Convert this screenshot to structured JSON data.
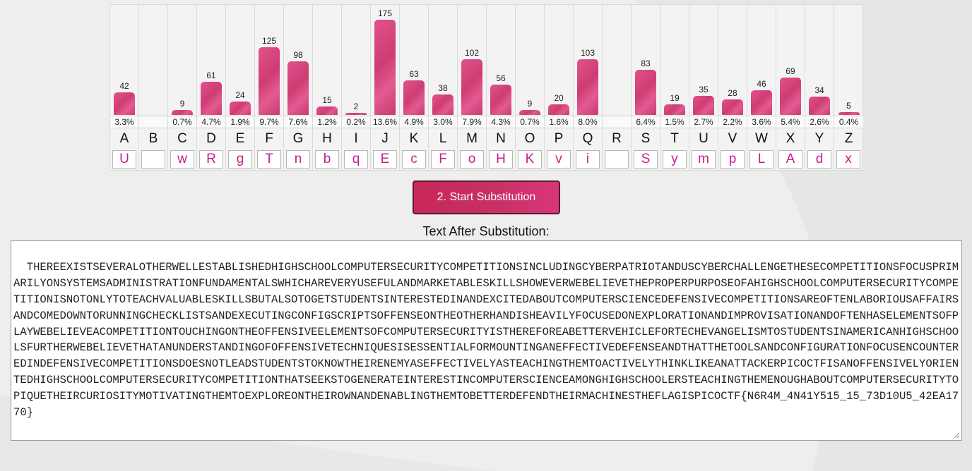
{
  "frequency": {
    "columns": [
      {
        "letter": "A",
        "count": "42",
        "count_num": 42,
        "pct": "3.3%",
        "sub": "U"
      },
      {
        "letter": "B",
        "count": "",
        "count_num": 0,
        "pct": "",
        "sub": ""
      },
      {
        "letter": "C",
        "count": "9",
        "count_num": 9,
        "pct": "0.7%",
        "sub": "w"
      },
      {
        "letter": "D",
        "count": "61",
        "count_num": 61,
        "pct": "4.7%",
        "sub": "R"
      },
      {
        "letter": "E",
        "count": "24",
        "count_num": 24,
        "pct": "1.9%",
        "sub": "g"
      },
      {
        "letter": "F",
        "count": "125",
        "count_num": 125,
        "pct": "9.7%",
        "sub": "T"
      },
      {
        "letter": "G",
        "count": "98",
        "count_num": 98,
        "pct": "7.6%",
        "sub": "n"
      },
      {
        "letter": "H",
        "count": "15",
        "count_num": 15,
        "pct": "1.2%",
        "sub": "b"
      },
      {
        "letter": "I",
        "count": "2",
        "count_num": 2,
        "pct": "0.2%",
        "sub": "q"
      },
      {
        "letter": "J",
        "count": "175",
        "count_num": 175,
        "pct": "13.6%",
        "sub": "E"
      },
      {
        "letter": "K",
        "count": "63",
        "count_num": 63,
        "pct": "4.9%",
        "sub": "c"
      },
      {
        "letter": "L",
        "count": "38",
        "count_num": 38,
        "pct": "3.0%",
        "sub": "F"
      },
      {
        "letter": "M",
        "count": "102",
        "count_num": 102,
        "pct": "7.9%",
        "sub": "o"
      },
      {
        "letter": "N",
        "count": "56",
        "count_num": 56,
        "pct": "4.3%",
        "sub": "H"
      },
      {
        "letter": "O",
        "count": "9",
        "count_num": 9,
        "pct": "0.7%",
        "sub": "K"
      },
      {
        "letter": "P",
        "count": "20",
        "count_num": 20,
        "pct": "1.6%",
        "sub": "v"
      },
      {
        "letter": "Q",
        "count": "103",
        "count_num": 103,
        "pct": "8.0%",
        "sub": "i"
      },
      {
        "letter": "R",
        "count": "",
        "count_num": 0,
        "pct": "",
        "sub": ""
      },
      {
        "letter": "S",
        "count": "83",
        "count_num": 83,
        "pct": "6.4%",
        "sub": "S"
      },
      {
        "letter": "T",
        "count": "19",
        "count_num": 19,
        "pct": "1.5%",
        "sub": "y"
      },
      {
        "letter": "U",
        "count": "35",
        "count_num": 35,
        "pct": "2.7%",
        "sub": "m"
      },
      {
        "letter": "V",
        "count": "28",
        "count_num": 28,
        "pct": "2.2%",
        "sub": "p"
      },
      {
        "letter": "W",
        "count": "46",
        "count_num": 46,
        "pct": "3.6%",
        "sub": "L"
      },
      {
        "letter": "X",
        "count": "69",
        "count_num": 69,
        "pct": "5.4%",
        "sub": "A"
      },
      {
        "letter": "Y",
        "count": "34",
        "count_num": 34,
        "pct": "2.6%",
        "sub": "d"
      },
      {
        "letter": "Z",
        "count": "5",
        "count_num": 5,
        "pct": "0.4%",
        "sub": "x"
      }
    ],
    "max_count": 175,
    "bar_color": "#d94381",
    "sub_text_color": "#c5218d"
  },
  "actions": {
    "start_label": "2. Start Substitution"
  },
  "output": {
    "label": "Text After Substitution:",
    "text": "THEREEXISTSEVERALOTHERWELLESTABLISHEDHIGHSCHOOLCOMPUTERSECURITYCOMPETITIONSINCLUDINGCYBERPATRIOTANDUSCYBERCHALLENGETHESECOMPETITIONSFOCUSPRIMARILYONSYSTEMSADMINISTRATIONFUNDAMENTALSWHICHAREVERYUSEFULANDMARKETABLESKILLSHOWEVERWEBELIEVETHEPROPERPURPOSEOFAHIGHSCHOOLCOMPUTERSECURITYCOMPETITIONISNOTONLYTOTEACHVALUABLESKILLSBUTALSOTOGETSTUDENTSINTERESTEDINANDEXCITEDABOUTCOMPUTERSCIENCEDEFENSIVECOMPETITIONSAREOFTENLABORIOUSAFFAIRSANDCOMEDOWNTORUNNINGCHECKLISTSANDEXECUTINGCONFIGSCRIPTSOFFENSEONTHEOTHERHANDISHEAVILYFOCUSEDONEXPLORATIONANDIMPROVISATIONANDOFTENHASELEMENTSOFPLAYWEBELIEVEACOMPETITIONTOUCHINGONTHEOFFENSIVEELEMENTSOFCOMPUTERSECURITYISTHEREFOREABETTERVEHICLEFORTECHEVANGELISMTOSTUDENTSINAMERICANHIGHSCHOOLSFURTHERWEBELIEVETHATANUNDERSTANDINGOFOFFENSIVETECHNIQUESISESSENTIALFORMOUNTINGANEFFECTIVEDEFENSEANDTHATTHETOOLSANDCONFIGURATIONFOCUSENCOUNTEREDINDEFENSIVECOMPETITIONSDOESNOTLEADSTUDENTSTOKNOWTHEIRENEMYASEFFECTIVELYASTEACHINGTHEMTOACTIVELYTHINKLIKEANATTACKERPICOCTFISANOFFENSIVELYORIENTEDHIGHSCHOOLCOMPUTERSECURITYCOMPETITIONTHATSEEKSTOGENERATEINTERESTINCOMPUTERSCIENCEAMONGHIGHSCHOOLERSTEACHINGTHEMENOUGHABOUTCOMPUTERSECURITYTOPIQUETHEIRCURIOSITYMOTIVATINGTHEMTOEXPLOREONTHEIROWNANDENABLINGTHEMTOBETTERDEFENDTHEIRMACHINESTHEFLAGISPICOCTF{N6R4M_4N41Y515_15_73D10U5_42EA1770}"
  }
}
